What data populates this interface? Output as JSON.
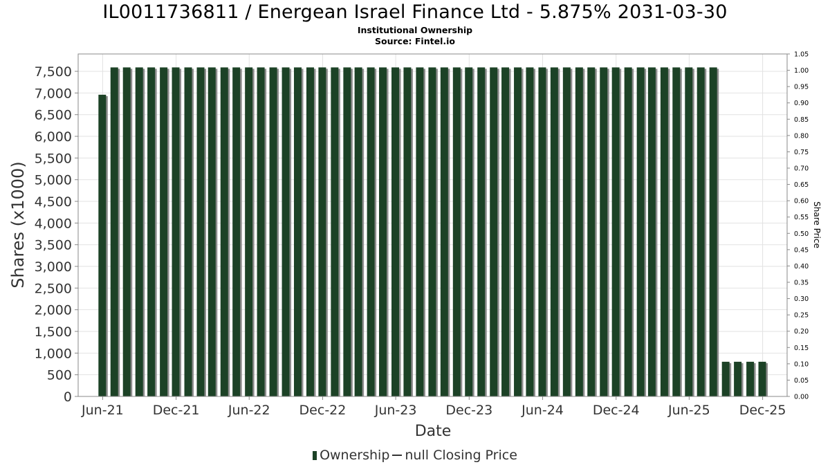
{
  "chart_data": {
    "type": "bar",
    "title": "IL0011736811 / Energean Israel Finance Ltd - 5.875% 2031-03-30",
    "subtitle": "Institutional Ownership",
    "source": "Source: Fintel.io",
    "xlabel": "Date",
    "ylabel": "Shares (x1000)",
    "y2label": "Share Price",
    "ylim": [
      0,
      7900
    ],
    "y2lim": [
      0,
      1.05
    ],
    "xlim": [
      "2021-04-01",
      "2026-01-31"
    ],
    "y_ticks": [
      "0",
      "500",
      "1,000",
      "1,500",
      "2,000",
      "2,500",
      "3,000",
      "3,500",
      "4,000",
      "4,500",
      "5,000",
      "5,500",
      "6,000",
      "6,500",
      "7,000",
      "7,500"
    ],
    "y_tick_values": [
      0,
      500,
      1000,
      1500,
      2000,
      2500,
      3000,
      3500,
      4000,
      4500,
      5000,
      5500,
      6000,
      6500,
      7000,
      7500
    ],
    "y2_ticks": [
      "0.00",
      "0.05",
      "0.10",
      "0.15",
      "0.20",
      "0.25",
      "0.30",
      "0.35",
      "0.40",
      "0.45",
      "0.50",
      "0.55",
      "0.60",
      "0.65",
      "0.70",
      "0.75",
      "0.80",
      "0.85",
      "0.90",
      "0.95",
      "1.00",
      "1.05"
    ],
    "x_ticks": [
      "Jun-21",
      "Dec-21",
      "Jun-22",
      "Dec-22",
      "Jun-23",
      "Dec-23",
      "Jun-24",
      "Dec-24",
      "Jun-25",
      "Dec-25"
    ],
    "x_tick_dates": [
      "2021-06-01",
      "2021-12-01",
      "2022-06-01",
      "2022-12-01",
      "2023-06-01",
      "2023-12-01",
      "2024-06-01",
      "2024-12-01",
      "2025-06-01",
      "2025-12-01"
    ],
    "grid": true,
    "legend_position": "bottom",
    "series": [
      {
        "name": "Ownership",
        "color": "#1c4226",
        "x": [
          "2021-05-31",
          "2021-06-30",
          "2021-07-31",
          "2021-08-31",
          "2021-09-30",
          "2021-10-31",
          "2021-11-30",
          "2021-12-31",
          "2022-01-31",
          "2022-02-28",
          "2022-03-31",
          "2022-04-30",
          "2022-05-31",
          "2022-06-30",
          "2022-07-31",
          "2022-08-31",
          "2022-09-30",
          "2022-10-31",
          "2022-11-30",
          "2022-12-31",
          "2023-01-31",
          "2023-02-28",
          "2023-03-31",
          "2023-04-30",
          "2023-05-31",
          "2023-06-30",
          "2023-07-31",
          "2023-08-31",
          "2023-09-30",
          "2023-10-31",
          "2023-11-30",
          "2023-12-31",
          "2024-01-31",
          "2024-02-29",
          "2024-03-31",
          "2024-04-30",
          "2024-05-31",
          "2024-06-30",
          "2024-07-31",
          "2024-08-31",
          "2024-09-30",
          "2024-10-31",
          "2024-11-30",
          "2024-12-31",
          "2025-01-31",
          "2025-02-28",
          "2025-03-31",
          "2025-04-30",
          "2025-05-31",
          "2025-06-30",
          "2025-07-31",
          "2025-08-31",
          "2025-09-30",
          "2025-10-31",
          "2025-11-30"
        ],
        "values": [
          6960,
          7590,
          7590,
          7590,
          7590,
          7590,
          7590,
          7590,
          7590,
          7590,
          7590,
          7590,
          7590,
          7590,
          7590,
          7590,
          7590,
          7590,
          7590,
          7590,
          7590,
          7590,
          7590,
          7590,
          7590,
          7590,
          7590,
          7590,
          7590,
          7590,
          7590,
          7590,
          7590,
          7590,
          7590,
          7590,
          7590,
          7590,
          7590,
          7590,
          7590,
          7590,
          7590,
          7590,
          7590,
          7590,
          7590,
          7590,
          7590,
          7590,
          7590,
          800,
          800,
          800,
          800
        ]
      },
      {
        "name": "null Closing Price",
        "color": "#333333",
        "values": []
      }
    ]
  }
}
